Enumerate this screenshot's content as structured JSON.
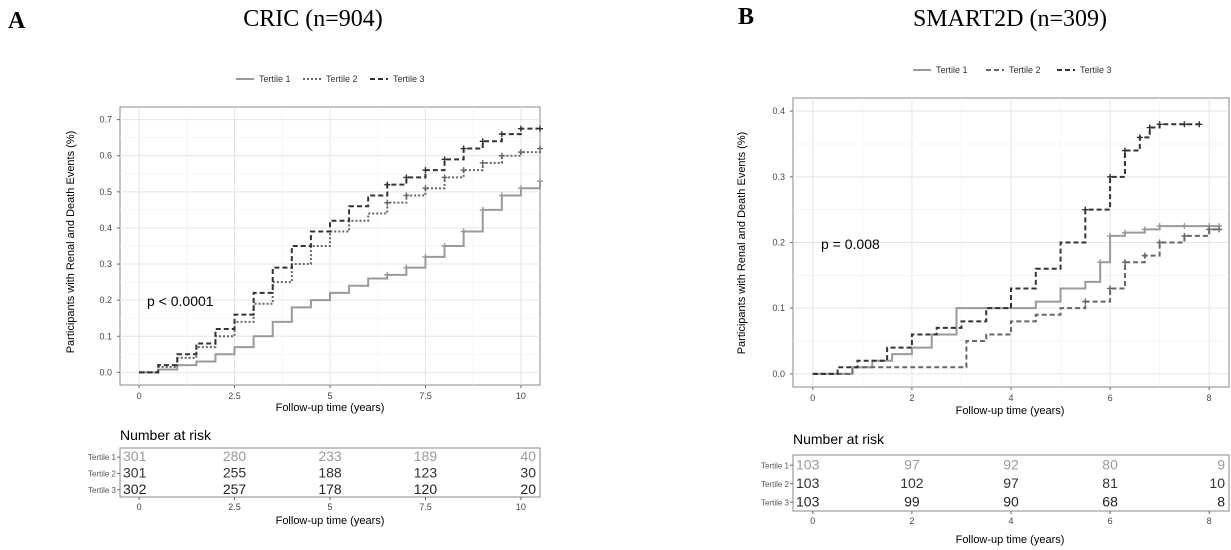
{
  "chart_data": [
    {
      "type": "line",
      "panel_letter": "A",
      "title": "CRIC (n=904)",
      "xlabel": "Follow-up time (years)",
      "ylabel": "Participants with Renal and Death Events (%)",
      "xlim": [
        -0.5,
        10.5
      ],
      "ylim": [
        -0.035,
        0.735
      ],
      "xticks": [
        0,
        2.5,
        5,
        7.5,
        10
      ],
      "xtick_labels": [
        "0",
        "2.5",
        "5",
        "7.5",
        "10"
      ],
      "yticks": [
        0.0,
        0.1,
        0.2,
        0.3,
        0.4,
        0.5,
        0.6,
        0.7
      ],
      "ytick_labels": [
        "0.0",
        "0.1",
        "0.2",
        "0.3",
        "0.4",
        "0.5",
        "0.6",
        "0.7"
      ],
      "grid": true,
      "legend_position": "top",
      "annotation": "p < 0.0001",
      "series": [
        {
          "name": "Tertile 1",
          "color": "#9a9a9a",
          "dash": "solid",
          "x": [
            0,
            0.5,
            1,
            1.5,
            2,
            2.5,
            3,
            3.5,
            4,
            4.5,
            5,
            5.5,
            6,
            6.5,
            7,
            7.5,
            8,
            8.5,
            9,
            9.5,
            10,
            10.5
          ],
          "y": [
            0,
            0.008,
            0.02,
            0.03,
            0.05,
            0.07,
            0.1,
            0.14,
            0.18,
            0.2,
            0.22,
            0.24,
            0.26,
            0.27,
            0.29,
            0.32,
            0.35,
            0.39,
            0.45,
            0.49,
            0.51,
            0.53
          ]
        },
        {
          "name": "Tertile 2",
          "color": "#666666",
          "dash": "dotted",
          "x": [
            0,
            0.5,
            1,
            1.5,
            2,
            2.5,
            3,
            3.5,
            4,
            4.5,
            5,
            5.5,
            6,
            6.5,
            7,
            7.5,
            8,
            8.5,
            9,
            9.5,
            10,
            10.5
          ],
          "y": [
            0,
            0.015,
            0.04,
            0.07,
            0.1,
            0.14,
            0.19,
            0.25,
            0.3,
            0.35,
            0.39,
            0.42,
            0.44,
            0.47,
            0.49,
            0.51,
            0.54,
            0.56,
            0.58,
            0.6,
            0.61,
            0.62
          ]
        },
        {
          "name": "Tertile 3",
          "color": "#333333",
          "dash": "dashed",
          "x": [
            0,
            0.5,
            1,
            1.5,
            2,
            2.5,
            3,
            3.5,
            4,
            4.5,
            5,
            5.5,
            6,
            6.5,
            7,
            7.5,
            8,
            8.5,
            9,
            9.5,
            10,
            10.5
          ],
          "y": [
            0,
            0.02,
            0.05,
            0.08,
            0.12,
            0.16,
            0.22,
            0.29,
            0.35,
            0.39,
            0.42,
            0.46,
            0.49,
            0.52,
            0.54,
            0.56,
            0.59,
            0.62,
            0.64,
            0.66,
            0.675,
            0.675
          ]
        }
      ],
      "risk_table": {
        "title": "Number at risk",
        "xlabel": "Follow-up time (years)",
        "times": [
          0,
          2.5,
          5,
          7.5,
          10
        ],
        "rows": [
          {
            "name": "Tertile 1",
            "color": "#9a9a9a",
            "values": [
              "301",
              "280",
              "233",
              "189",
              "40"
            ]
          },
          {
            "name": "Tertile 2",
            "color": "#333333",
            "values": [
              "301",
              "255",
              "188",
              "123",
              "30"
            ]
          },
          {
            "name": "Tertile 3",
            "color": "#222222",
            "values": [
              "302",
              "257",
              "178",
              "120",
              "20"
            ]
          }
        ]
      }
    },
    {
      "type": "line",
      "panel_letter": "B",
      "title": "SMART2D (n=309)",
      "xlabel": "Follow-up time (years)",
      "ylabel": "Participants with Renal and Death Events (%)",
      "xlim": [
        -0.4,
        8.4
      ],
      "ylim": [
        -0.02,
        0.42
      ],
      "xticks": [
        0,
        2,
        4,
        6,
        8
      ],
      "xtick_labels": [
        "0",
        "2",
        "4",
        "6",
        "8"
      ],
      "yticks": [
        0.0,
        0.1,
        0.2,
        0.3,
        0.4
      ],
      "ytick_labels": [
        "0.0",
        "0.1",
        "0.2",
        "0.3",
        "0.4"
      ],
      "grid": true,
      "legend_position": "top",
      "annotation": "p = 0.008",
      "series": [
        {
          "name": "Tertile 1",
          "color": "#9a9a9a",
          "dash": "solid",
          "x": [
            0,
            0.8,
            1.2,
            1.6,
            2,
            2.4,
            2.9,
            3.5,
            4,
            4.5,
            5,
            5.5,
            5.8,
            6,
            6.3,
            6.7,
            7,
            7.5,
            8,
            8.2
          ],
          "y": [
            0,
            0.01,
            0.02,
            0.03,
            0.04,
            0.06,
            0.1,
            0.1,
            0.1,
            0.11,
            0.13,
            0.14,
            0.17,
            0.21,
            0.215,
            0.22,
            0.225,
            0.225,
            0.225,
            0.225
          ]
        },
        {
          "name": "Tertile 2",
          "color": "#666666",
          "dash": "dashed",
          "x": [
            0,
            0.8,
            1.2,
            2,
            2.5,
            3,
            3.1,
            3.5,
            4,
            4.5,
            5,
            5.5,
            6,
            6.3,
            6.7,
            7,
            7.5,
            8,
            8.2
          ],
          "y": [
            0,
            0.01,
            0.01,
            0.01,
            0.01,
            0.01,
            0.05,
            0.06,
            0.08,
            0.09,
            0.1,
            0.11,
            0.13,
            0.17,
            0.18,
            0.2,
            0.21,
            0.22,
            0.22
          ]
        },
        {
          "name": "Tertile 3",
          "color": "#333333",
          "dash": "dashed",
          "x": [
            0,
            0.5,
            0.9,
            1.5,
            2,
            2.5,
            3,
            3.5,
            4,
            4.5,
            5,
            5.5,
            6,
            6.3,
            6.6,
            6.8,
            7,
            7.5,
            7.8
          ],
          "y": [
            0,
            0.01,
            0.02,
            0.04,
            0.06,
            0.07,
            0.08,
            0.1,
            0.13,
            0.16,
            0.2,
            0.25,
            0.3,
            0.34,
            0.36,
            0.375,
            0.38,
            0.38,
            0.38
          ]
        }
      ],
      "risk_table": {
        "title": "Number at risk",
        "xlabel": "Follow-up time (years)",
        "times": [
          0,
          2,
          4,
          6,
          8
        ],
        "rows": [
          {
            "name": "Tertile 1",
            "color": "#9a9a9a",
            "values": [
              "103",
              "97",
              "92",
              "80",
              "9"
            ]
          },
          {
            "name": "Tertile 2",
            "color": "#333333",
            "values": [
              "103",
              "102",
              "97",
              "81",
              "10"
            ]
          },
          {
            "name": "Tertile 3",
            "color": "#222222",
            "values": [
              "103",
              "99",
              "90",
              "68",
              "8"
            ]
          }
        ]
      }
    }
  ]
}
